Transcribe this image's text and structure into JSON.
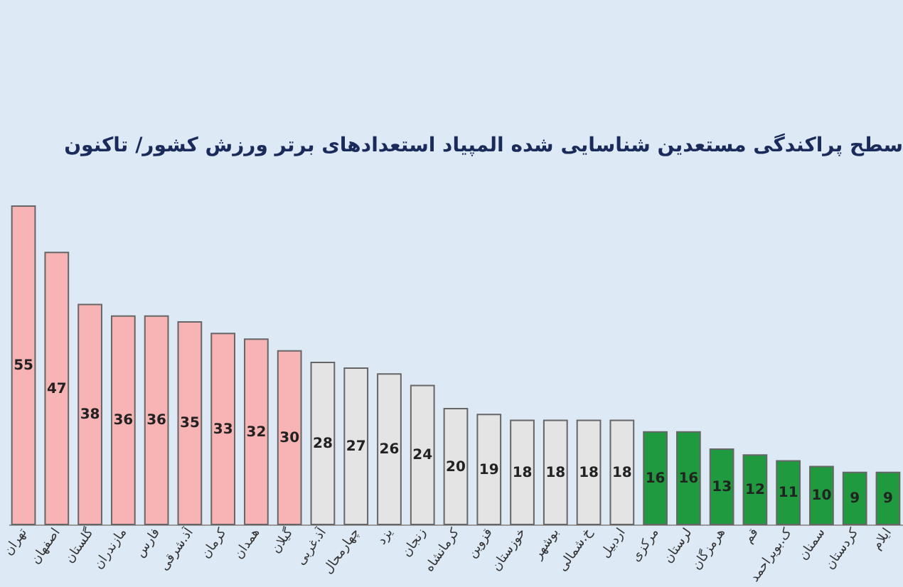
{
  "chart_data": {
    "type": "bar",
    "title": "سطح پراکندگی مستعدین شناسایی شده المپیاد استعدادهای برتر ورزش کشور/ تاکنون",
    "categories": [
      "تهران",
      "اصفهان",
      "گلستان",
      "مازندران",
      "فارس",
      "آذ.شرقی",
      "کرمان",
      "همدان",
      "گیلان",
      "آذ.غربی",
      "چهارمحال",
      "یزد",
      "زنجان",
      "کرمانشاه",
      "قزوین",
      "خوزستان",
      "بوشهر",
      "خ.شمالی",
      "اردبیل",
      "مرکزی",
      "لرستان",
      "هرمزگان",
      "قم",
      "ک.بویراحمد",
      "سمنان",
      "کردستان",
      "ایلام"
    ],
    "values": [
      55,
      47,
      38,
      36,
      36,
      35,
      33,
      32,
      30,
      28,
      27,
      26,
      24,
      20,
      19,
      18,
      18,
      18,
      18,
      16,
      16,
      13,
      12,
      11,
      10,
      9,
      9
    ],
    "colors": [
      "#f8b4b4",
      "#f8b4b4",
      "#f8b4b4",
      "#f8b4b4",
      "#f8b4b4",
      "#f8b4b4",
      "#f8b4b4",
      "#f8b4b4",
      "#f8b4b4",
      "#e4e4e4",
      "#e4e4e4",
      "#e4e4e4",
      "#e4e4e4",
      "#e4e4e4",
      "#e4e4e4",
      "#e4e4e4",
      "#e4e4e4",
      "#e4e4e4",
      "#e4e4e4",
      "#1f9a3e",
      "#1f9a3e",
      "#1f9a3e",
      "#1f9a3e",
      "#1f9a3e",
      "#1f9a3e",
      "#1f9a3e",
      "#1f9a3e"
    ],
    "data_labels": true
  }
}
